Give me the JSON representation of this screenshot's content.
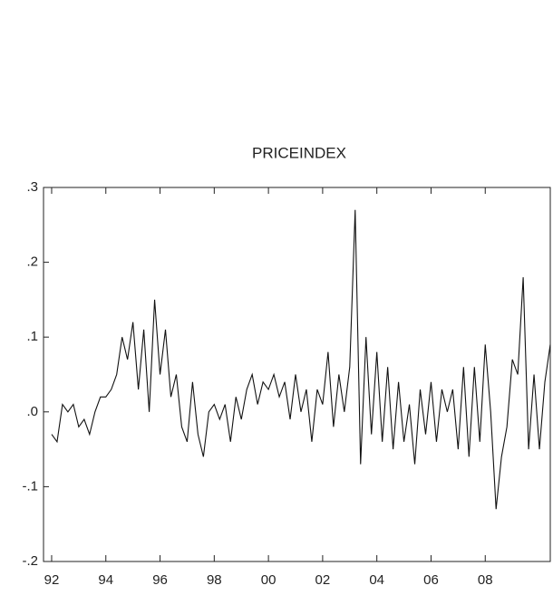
{
  "chart_data": {
    "type": "line",
    "title": "PRICEINDEX",
    "x": [
      1992.0,
      1992.2,
      1992.4,
      1992.6,
      1992.8,
      1993.0,
      1993.2,
      1993.4,
      1993.6,
      1993.8,
      1994.0,
      1994.2,
      1994.4,
      1994.6,
      1994.8,
      1995.0,
      1995.2,
      1995.4,
      1995.6,
      1995.8,
      1996.0,
      1996.2,
      1996.4,
      1996.6,
      1996.8,
      1997.0,
      1997.2,
      1997.4,
      1997.6,
      1997.8,
      1998.0,
      1998.2,
      1998.4,
      1998.6,
      1998.8,
      1999.0,
      1999.2,
      1999.4,
      1999.6,
      1999.8,
      2000.0,
      2000.2,
      2000.4,
      2000.6,
      2000.8,
      2001.0,
      2001.2,
      2001.4,
      2001.6,
      2001.8,
      2002.0,
      2002.2,
      2002.4,
      2002.6,
      2002.8,
      2003.0,
      2003.2,
      2003.4,
      2003.6,
      2003.8,
      2004.0,
      2004.2,
      2004.4,
      2004.6,
      2004.8,
      2005.0,
      2005.2,
      2005.4,
      2005.6,
      2005.8,
      2006.0,
      2006.2,
      2006.4,
      2006.6,
      2006.8,
      2007.0,
      2007.2,
      2007.4,
      2007.6,
      2007.8,
      2008.0,
      2008.2,
      2008.4,
      2008.6,
      2008.8,
      2009.0,
      2009.2,
      2009.4,
      2009.6,
      2009.8,
      2010.0,
      2010.2,
      2010.4
    ],
    "series": [
      {
        "name": "PRICEINDEX",
        "color": "#111111",
        "values": [
          -0.03,
          -0.04,
          0.01,
          0.0,
          0.01,
          -0.02,
          -0.01,
          -0.03,
          0.0,
          0.02,
          0.02,
          0.03,
          0.05,
          0.1,
          0.07,
          0.12,
          0.03,
          0.11,
          0.0,
          0.15,
          0.05,
          0.11,
          0.02,
          0.05,
          -0.02,
          -0.04,
          0.04,
          -0.03,
          -0.06,
          0.0,
          0.01,
          -0.01,
          0.01,
          -0.04,
          0.02,
          -0.01,
          0.03,
          0.05,
          0.01,
          0.04,
          0.03,
          0.05,
          0.02,
          0.04,
          -0.01,
          0.05,
          0.0,
          0.03,
          -0.04,
          0.03,
          0.01,
          0.08,
          -0.02,
          0.05,
          0.0,
          0.06,
          0.27,
          -0.07,
          0.1,
          -0.03,
          0.08,
          -0.04,
          0.06,
          -0.05,
          0.04,
          -0.04,
          0.01,
          -0.07,
          0.03,
          -0.03,
          0.04,
          -0.04,
          0.03,
          0.0,
          0.03,
          -0.05,
          0.06,
          -0.06,
          0.06,
          -0.04,
          0.09,
          0.0,
          -0.13,
          -0.06,
          -0.02,
          0.07,
          0.05,
          0.18,
          -0.05,
          0.05,
          -0.05,
          0.04,
          0.09
        ]
      }
    ],
    "xlim": [
      1991.7,
      2010.4
    ],
    "xticks": [
      {
        "value": 1992,
        "label": "92"
      },
      {
        "value": 1994,
        "label": "94"
      },
      {
        "value": 1996,
        "label": "96"
      },
      {
        "value": 1998,
        "label": "98"
      },
      {
        "value": 2000,
        "label": "00"
      },
      {
        "value": 2002,
        "label": "02"
      },
      {
        "value": 2004,
        "label": "04"
      },
      {
        "value": 2006,
        "label": "06"
      },
      {
        "value": 2008,
        "label": "08"
      }
    ],
    "ylim": [
      -0.2,
      0.3
    ],
    "yticks": [
      {
        "value": -0.2,
        "label": "-.2"
      },
      {
        "value": -0.1,
        "label": "-.1"
      },
      {
        "value": 0,
        "label": ".0"
      },
      {
        "value": 0.1,
        "label": ".1"
      },
      {
        "value": 0.2,
        "label": ".2"
      },
      {
        "value": 0.3,
        "label": ".3"
      }
    ]
  }
}
